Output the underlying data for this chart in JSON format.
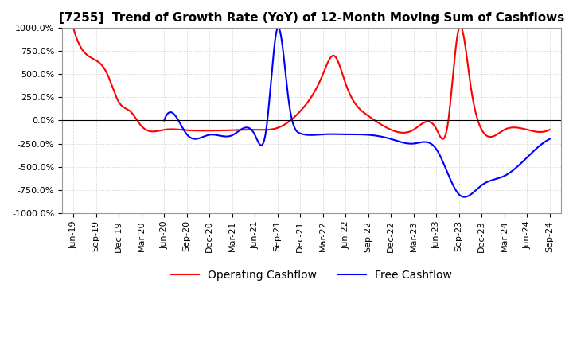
{
  "title": "[7255]  Trend of Growth Rate (YoY) of 12-Month Moving Sum of Cashflows",
  "ylim": [
    -1000,
    1000
  ],
  "yticks": [
    1000.0,
    750.0,
    500.0,
    250.0,
    0.0,
    -250.0,
    -500.0,
    -750.0,
    -1000.0
  ],
  "ytick_labels": [
    "1000.0%",
    "750.0%",
    "500.0%",
    "250.0%",
    "0.0%",
    "-250.0%",
    "-500.0%",
    "-750.0%",
    "-1000.0%"
  ],
  "legend": [
    "Operating Cashflow",
    "Free Cashflow"
  ],
  "x_labels": [
    "Jun-19",
    "Sep-19",
    "Dec-19",
    "Mar-20",
    "Jun-20",
    "Sep-20",
    "Dec-20",
    "Mar-21",
    "Jun-21",
    "Sep-21",
    "Dec-21",
    "Mar-22",
    "Jun-22",
    "Sep-22",
    "Dec-22",
    "Mar-23",
    "Jun-23",
    "Sep-23",
    "Dec-23",
    "Mar-24",
    "Jun-24",
    "Sep-24"
  ],
  "background_color": "#ffffff",
  "grid_color": "#bbbbbb",
  "title_fontsize": 11,
  "tick_fontsize": 8,
  "legend_fontsize": 10,
  "ocf_x": [
    0,
    1,
    1.5,
    2,
    2.5,
    3,
    4,
    5,
    6,
    7,
    8,
    9,
    10,
    11,
    11.5,
    12,
    13,
    14,
    15,
    16,
    16.5,
    17,
    17.5,
    18,
    19,
    20,
    21
  ],
  "ocf_y": [
    1000,
    650,
    500,
    200,
    100,
    -60,
    -100,
    -105,
    -110,
    -105,
    -100,
    -80,
    100,
    500,
    700,
    400,
    50,
    -100,
    -100,
    -90,
    -50,
    1000,
    400,
    -100,
    -100,
    -100,
    -100
  ],
  "fcf_x": [
    4,
    4.5,
    5,
    6,
    7,
    8,
    8.5,
    9,
    9.5,
    10,
    11,
    12,
    13,
    14,
    15,
    16,
    17,
    18,
    19,
    20,
    21
  ],
  "fcf_y": [
    0,
    50,
    -150,
    -155,
    -160,
    -155,
    -100,
    1000,
    200,
    -140,
    -150,
    -150,
    -155,
    -200,
    -250,
    -310,
    -800,
    -700,
    -600,
    -400,
    -200
  ]
}
